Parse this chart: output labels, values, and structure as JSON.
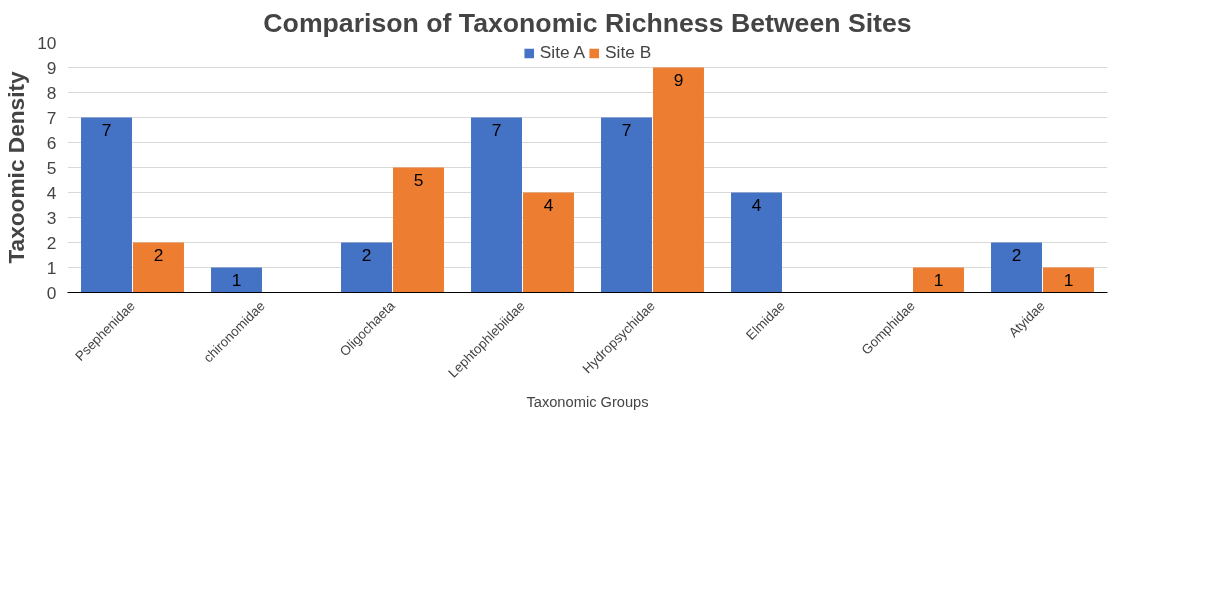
{
  "chart_data": {
    "type": "bar",
    "title": "Comparison of Taxonomic Richness Between Sites",
    "xlabel": "Taxonomic Groups",
    "ylabel": "Taxoomic Density",
    "categories": [
      "Psephenidae",
      "chironomidae",
      "Oligochaeta",
      "Lephtophlebiidae",
      "Hydropsychidae",
      "Elmidae",
      "Gomphidae",
      "Atyidae"
    ],
    "series": [
      {
        "name": "Site A",
        "color": "#4472c4",
        "values": [
          7,
          1,
          2,
          7,
          7,
          4,
          null,
          2
        ]
      },
      {
        "name": "Site B",
        "color": "#ed7d31",
        "values": [
          2,
          null,
          5,
          4,
          9,
          null,
          1,
          1
        ]
      }
    ],
    "ylim": [
      0,
      10
    ],
    "yticks": [
      0,
      1,
      2,
      3,
      4,
      5,
      6,
      7,
      8,
      9,
      10
    ],
    "grid": "y",
    "legend": "top",
    "data_labels": true
  }
}
